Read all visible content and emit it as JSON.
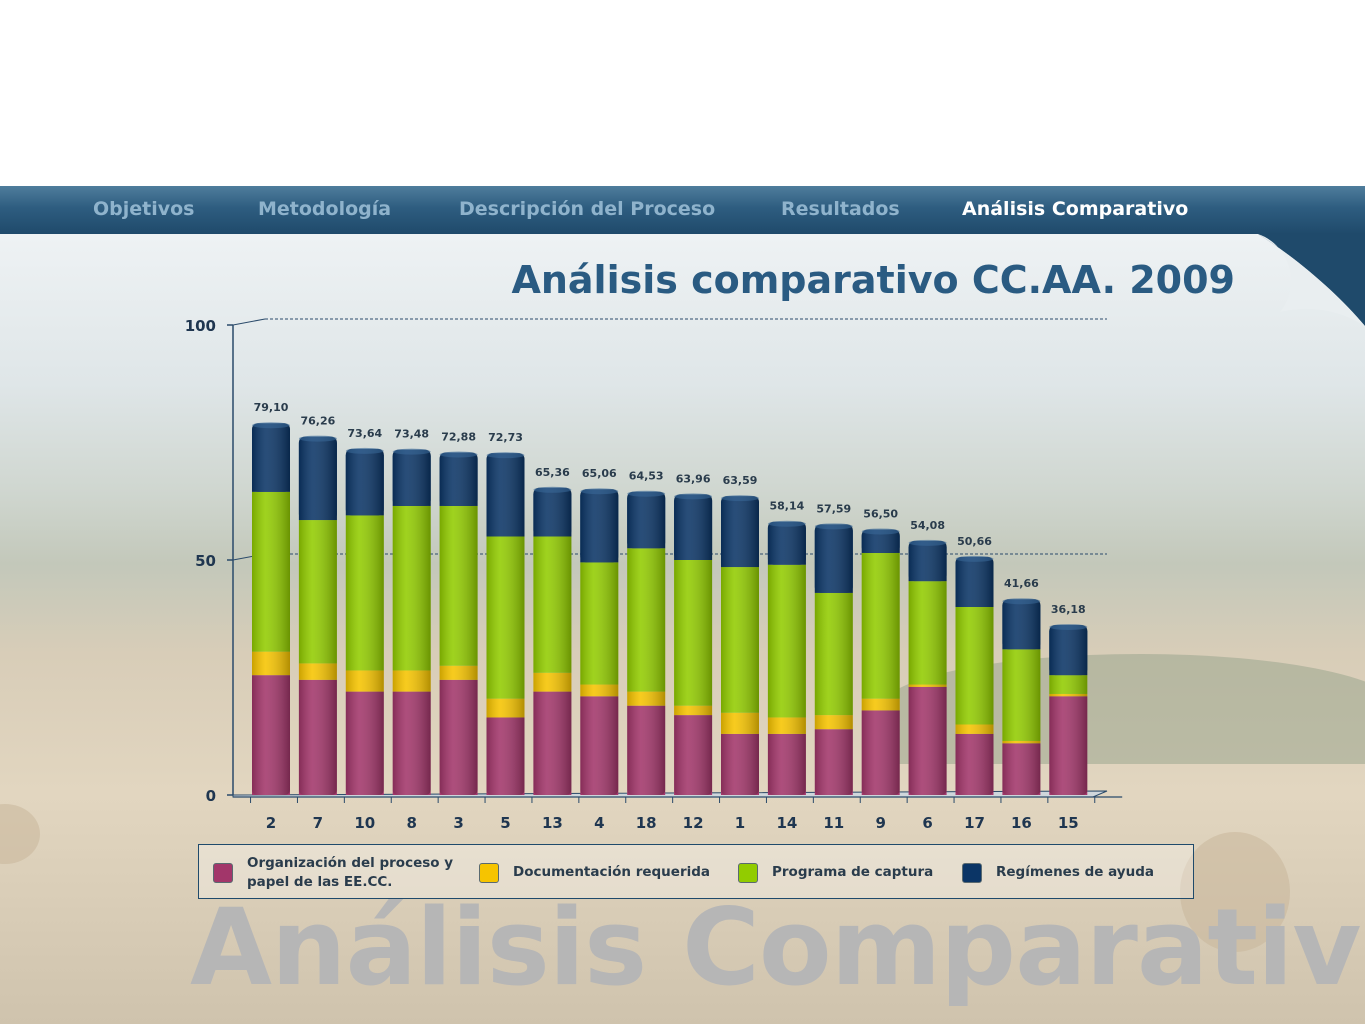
{
  "nav": {
    "items": [
      {
        "label": "Objetivos",
        "active": false
      },
      {
        "label": "Metodología",
        "active": false
      },
      {
        "label": "Descripción del Proceso",
        "active": false
      },
      {
        "label": "Resultados",
        "active": false
      },
      {
        "label": "Análisis Comparativo",
        "active": true
      }
    ]
  },
  "colors": {
    "nav_active": "#ffffff",
    "nav_inactive": "#8fb3cc",
    "title": "#2a5b82"
  },
  "chart_data": {
    "type": "bar",
    "stacked": true,
    "title": "Análisis comparativo CC.AA. 2009",
    "xlabel": "",
    "ylabel": "",
    "ylim": [
      0,
      100
    ],
    "yticks": [
      "0",
      "50",
      "100"
    ],
    "grid": true,
    "legend_position": "bottom",
    "categories": [
      "2",
      "7",
      "10",
      "8",
      "3",
      "5",
      "13",
      "4",
      "18",
      "12",
      "1",
      "14",
      "11",
      "9",
      "6",
      "17",
      "16",
      "15"
    ],
    "totals": [
      "79,10",
      "76,26",
      "73,64",
      "73,48",
      "72,88",
      "72,73",
      "65,36",
      "65,06",
      "64,53",
      "63,96",
      "63,59",
      "58,14",
      "57,59",
      "56,50",
      "54,08",
      "50,66",
      "41,66",
      "36,18"
    ],
    "series": [
      {
        "name": "Organización del proceso y papel de las EE.CC.",
        "color": "#a2366a",
        "values": [
          25.5,
          24.5,
          22.0,
          22.0,
          24.5,
          16.5,
          22.0,
          21.0,
          19.0,
          17.0,
          13.0,
          13.0,
          14.0,
          18.0,
          23.0,
          13.0,
          11.0,
          21.0
        ]
      },
      {
        "name": "Documentación requerida",
        "color": "#f6c400",
        "values": [
          5.0,
          3.5,
          4.5,
          4.5,
          3.0,
          4.0,
          4.0,
          2.5,
          3.0,
          2.0,
          4.5,
          3.5,
          3.0,
          2.5,
          0.5,
          2.0,
          0.5,
          0.5
        ]
      },
      {
        "name": "Programa de captura",
        "color": "#92cc00",
        "values": [
          34.0,
          30.5,
          33.0,
          35.0,
          34.0,
          34.5,
          29.0,
          26.0,
          30.5,
          31.0,
          31.0,
          32.5,
          26.0,
          31.0,
          22.0,
          25.0,
          19.5,
          4.0
        ]
      },
      {
        "name": "Regímenes de ayuda",
        "color": "#0b3566",
        "values": [
          14.6,
          17.76,
          14.14,
          11.98,
          11.38,
          17.73,
          10.36,
          15.56,
          12.03,
          13.96,
          15.09,
          9.14,
          14.59,
          5.0,
          8.58,
          10.66,
          10.66,
          10.68
        ]
      }
    ]
  },
  "watermark": "Análisis Comparativo"
}
